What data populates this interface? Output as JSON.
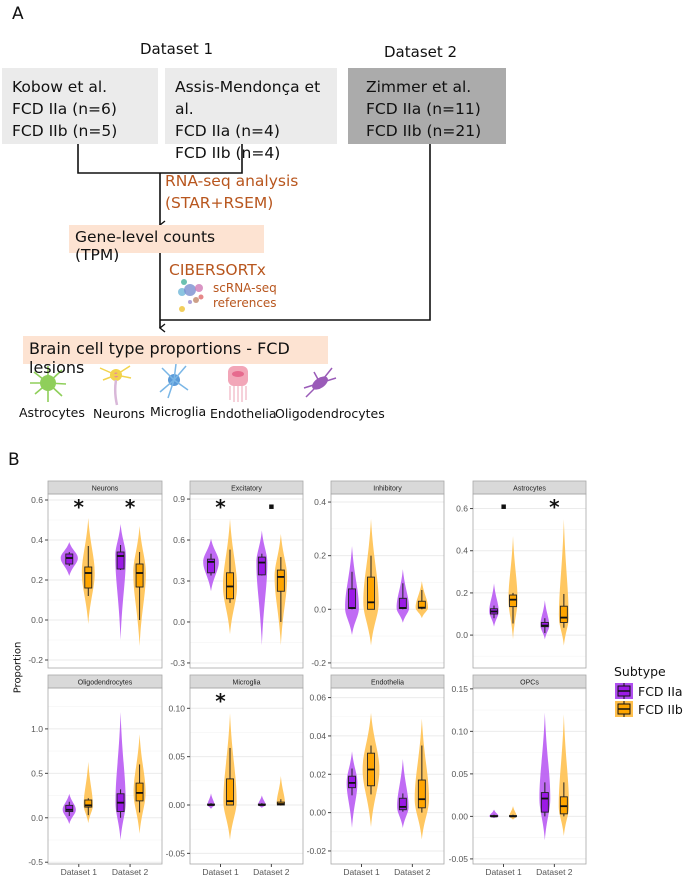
{
  "panel_a": {
    "letter": "A",
    "dataset1_title": "Dataset 1",
    "dataset2_title": "Dataset 2",
    "sources": [
      {
        "name": "Kobow et al.",
        "line2": "FCD IIa (n=6)",
        "line3": "FCD IIb (n=5)"
      },
      {
        "name": "Assis-Mendonça et al.",
        "line2": "FCD IIa (n=4)",
        "line3": "FCD IIb (n=4)"
      },
      {
        "name": "Zimmer et al.",
        "line2": "FCD IIa (n=11)",
        "line3": "FCD IIb (n=21)"
      }
    ],
    "step1_line1": "RNA-seq analysis",
    "step1_line2": "(STAR+RSEM)",
    "counts_box": "Gene-level counts (TPM)",
    "step2": "CIBERSORTx",
    "ref_line1": "scRNA-seq",
    "ref_line2": "references",
    "result_box": "Brain cell type proportions - FCD lesions",
    "cell_types": [
      "Astrocytes",
      "Neurons",
      "Microglia",
      "Endothelia",
      "Oligodendrocytes"
    ],
    "colors": {
      "accent_text": "#b8561e",
      "peach": "#fde3d2",
      "box_light": "#ebebeb",
      "box_dark": "#ababab"
    }
  },
  "panel_b": {
    "letter": "B",
    "ylabel": "Proportion",
    "legend": {
      "title": "Subtype",
      "items": [
        {
          "label": "FCD IIa",
          "color": "#9b1ae6"
        },
        {
          "label": "FCD IIb",
          "color": "#ffa500"
        }
      ]
    }
  },
  "chart_data": {
    "type": "violin+box",
    "ylabel": "Proportion",
    "categories": [
      "Dataset 1",
      "Dataset 2"
    ],
    "subtypes": [
      "FCD IIa",
      "FCD IIb"
    ],
    "facets": [
      {
        "title": "Neurons",
        "ylim": [
          -0.24,
          0.63
        ],
        "ticks": [
          -0.2,
          0.0,
          0.2,
          0.4,
          0.6
        ],
        "tick_labels": [
          "-0.2",
          "0.0",
          "0.2",
          "0.4",
          "0.6"
        ],
        "significance": [
          "*",
          "*"
        ],
        "groups": [
          {
            "vmin": 0.22,
            "vmax": 0.39,
            "wl": 0.27,
            "q1": 0.28,
            "med": 0.31,
            "q3": 0.33,
            "wh": 0.34
          },
          {
            "vmin": -0.02,
            "vmax": 0.51,
            "wl": 0.12,
            "q1": 0.16,
            "med": 0.235,
            "q3": 0.265,
            "wh": 0.37
          },
          {
            "vmin": -0.1,
            "vmax": 0.48,
            "wl": 0.25,
            "q1": 0.255,
            "med": 0.32,
            "q3": 0.34,
            "wh": 0.375
          },
          {
            "vmin": -0.13,
            "vmax": 0.47,
            "wl": 0.0,
            "q1": 0.165,
            "med": 0.235,
            "q3": 0.28,
            "wh": 0.34
          }
        ]
      },
      {
        "title": "Excitatory",
        "ylim": [
          -0.337,
          0.937
        ],
        "ticks": [
          -0.3,
          0.0,
          0.3,
          0.6,
          0.9
        ],
        "tick_labels": [
          "-0.3",
          "0.0",
          "0.3",
          "0.6",
          "0.9"
        ],
        "significance": [
          "*",
          "."
        ],
        "groups": [
          {
            "vmin": 0.225,
            "vmax": 0.61,
            "wl": 0.34,
            "q1": 0.36,
            "med": 0.44,
            "q3": 0.46,
            "wh": 0.5
          },
          {
            "vmin": -0.09,
            "vmax": 0.755,
            "wl": 0.14,
            "q1": 0.17,
            "med": 0.26,
            "q3": 0.36,
            "wh": 0.53
          },
          {
            "vmin": -0.17,
            "vmax": 0.67,
            "wl": 0.34,
            "q1": 0.345,
            "med": 0.435,
            "q3": 0.475,
            "wh": 0.5
          },
          {
            "vmin": -0.17,
            "vmax": 0.645,
            "wl": 0.0,
            "q1": 0.225,
            "med": 0.33,
            "q3": 0.38,
            "wh": 0.475
          }
        ]
      },
      {
        "title": "Inhibitory",
        "ylim": [
          -0.219,
          0.43
        ],
        "ticks": [
          -0.2,
          0.0,
          0.2,
          0.4
        ],
        "tick_labels": [
          "-0.2",
          "0.0",
          "0.2",
          "0.4"
        ],
        "significance": [
          "",
          ""
        ],
        "groups": [
          {
            "vmin": -0.096,
            "vmax": 0.236,
            "wl": 0.0,
            "q1": 0.003,
            "med": 0.005,
            "q3": 0.076,
            "wh": 0.14
          },
          {
            "vmin": -0.135,
            "vmax": 0.337,
            "wl": 0.0,
            "q1": 0.0,
            "med": 0.026,
            "q3": 0.12,
            "wh": 0.2
          },
          {
            "vmin": -0.05,
            "vmax": 0.15,
            "wl": 0.0,
            "q1": 0.003,
            "med": 0.005,
            "q3": 0.041,
            "wh": 0.097
          },
          {
            "vmin": -0.033,
            "vmax": 0.105,
            "wl": 0.0,
            "q1": 0.004,
            "med": 0.006,
            "q3": 0.03,
            "wh": 0.072
          }
        ]
      },
      {
        "title": "Astrocytes",
        "ylim": [
          -0.156,
          0.669
        ],
        "ticks": [
          0.0,
          0.2,
          0.4,
          0.6
        ],
        "tick_labels": [
          "0.0",
          "0.2",
          "0.4",
          "0.6"
        ],
        "significance": [
          ".",
          "*"
        ],
        "groups": [
          {
            "vmin": 0.04,
            "vmax": 0.245,
            "wl": 0.08,
            "q1": 0.1,
            "med": 0.112,
            "q3": 0.125,
            "wh": 0.14
          },
          {
            "vmin": -0.02,
            "vmax": 0.47,
            "wl": 0.055,
            "q1": 0.135,
            "med": 0.168,
            "q3": 0.19,
            "wh": 0.2
          },
          {
            "vmin": -0.02,
            "vmax": 0.165,
            "wl": 0.01,
            "q1": 0.04,
            "med": 0.045,
            "q3": 0.06,
            "wh": 0.08
          },
          {
            "vmin": -0.05,
            "vmax": 0.55,
            "wl": 0.035,
            "q1": 0.06,
            "med": 0.083,
            "q3": 0.137,
            "wh": 0.195
          }
        ]
      },
      {
        "title": "Oligodendrocytes",
        "ylim": [
          -0.52,
          1.46
        ],
        "ticks": [
          -0.5,
          0.0,
          0.5,
          1.0
        ],
        "tick_labels": [
          "-0.5",
          "0.0",
          "0.5",
          "1.0"
        ],
        "significance": [
          "",
          ""
        ],
        "groups": [
          {
            "vmin": -0.07,
            "vmax": 0.27,
            "wl": 0.02,
            "q1": 0.07,
            "med": 0.09,
            "q3": 0.14,
            "wh": 0.18
          },
          {
            "vmin": -0.06,
            "vmax": 0.63,
            "wl": 0.03,
            "q1": 0.12,
            "med": 0.14,
            "q3": 0.2,
            "wh": 0.22
          },
          {
            "vmin": -0.25,
            "vmax": 1.19,
            "wl": 0.0,
            "q1": 0.07,
            "med": 0.17,
            "q3": 0.27,
            "wh": 0.32
          },
          {
            "vmin": -0.18,
            "vmax": 0.94,
            "wl": 0.06,
            "q1": 0.19,
            "med": 0.28,
            "q3": 0.39,
            "wh": 0.6
          }
        ]
      },
      {
        "title": "Microglia",
        "ylim": [
          -0.061,
          0.121
        ],
        "ticks": [
          -0.05,
          0.0,
          0.05,
          0.1
        ],
        "tick_labels": [
          "-0.05",
          "0.00",
          "0.05",
          "0.10"
        ],
        "significance": [
          "*",
          ""
        ],
        "groups": [
          {
            "vmin": -0.004,
            "vmax": 0.012,
            "wl": 0.0,
            "q1": 0.0,
            "med": 0.0,
            "q3": 0.001,
            "wh": 0.002
          },
          {
            "vmin": -0.036,
            "vmax": 0.095,
            "wl": 0.0,
            "q1": 0.0,
            "med": 0.004,
            "q3": 0.027,
            "wh": 0.059
          },
          {
            "vmin": -0.003,
            "vmax": 0.01,
            "wl": 0.0,
            "q1": 0.0,
            "med": 0.0,
            "q3": 0.001,
            "wh": 0.002
          },
          {
            "vmin": -0.001,
            "vmax": 0.03,
            "wl": 0.0,
            "q1": 0.0,
            "med": 0.001,
            "q3": 0.003,
            "wh": 0.006
          }
        ]
      },
      {
        "title": "Endothelia",
        "ylim": [
          -0.0268,
          0.065
        ],
        "ticks": [
          -0.02,
          0.0,
          0.02,
          0.04,
          0.06
        ],
        "tick_labels": [
          "-0.02",
          "0.00",
          "0.02",
          "0.04",
          "0.06"
        ],
        "significance": [
          "",
          ""
        ],
        "groups": [
          {
            "vmin": -0.008,
            "vmax": 0.032,
            "wl": 0.009,
            "q1": 0.013,
            "med": 0.0155,
            "q3": 0.019,
            "wh": 0.023
          },
          {
            "vmin": -0.0075,
            "vmax": 0.052,
            "wl": 0.0095,
            "q1": 0.014,
            "med": 0.0225,
            "q3": 0.031,
            "wh": 0.035
          },
          {
            "vmin": -0.008,
            "vmax": 0.028,
            "wl": 0.0005,
            "q1": 0.0015,
            "med": 0.003,
            "q3": 0.0075,
            "wh": 0.01
          },
          {
            "vmin": -0.014,
            "vmax": 0.049,
            "wl": 0.0,
            "q1": 0.0025,
            "med": 0.007,
            "q3": 0.017,
            "wh": 0.035
          }
        ]
      },
      {
        "title": "OPCs",
        "ylim": [
          -0.056,
          0.151
        ],
        "ticks": [
          -0.05,
          0.0,
          0.05,
          0.1,
          0.15
        ],
        "tick_labels": [
          "-0.05",
          "0.00",
          "0.05",
          "0.10",
          "0.15"
        ],
        "significance": [
          "",
          ""
        ],
        "groups": [
          {
            "vmin": -0.002,
            "vmax": 0.008,
            "wl": 0.0,
            "q1": 0.0,
            "med": 0.0,
            "q3": 0.001,
            "wh": 0.002
          },
          {
            "vmin": -0.004,
            "vmax": 0.012,
            "wl": 0.0,
            "q1": 0.0,
            "med": 0.0,
            "q3": 0.001,
            "wh": 0.002
          },
          {
            "vmin": -0.028,
            "vmax": 0.122,
            "wl": 0.0,
            "q1": 0.005,
            "med": 0.021,
            "q3": 0.028,
            "wh": 0.04
          },
          {
            "vmin": -0.023,
            "vmax": 0.12,
            "wl": 0.0,
            "q1": 0.003,
            "med": 0.012,
            "q3": 0.023,
            "wh": 0.04
          }
        ]
      }
    ]
  }
}
